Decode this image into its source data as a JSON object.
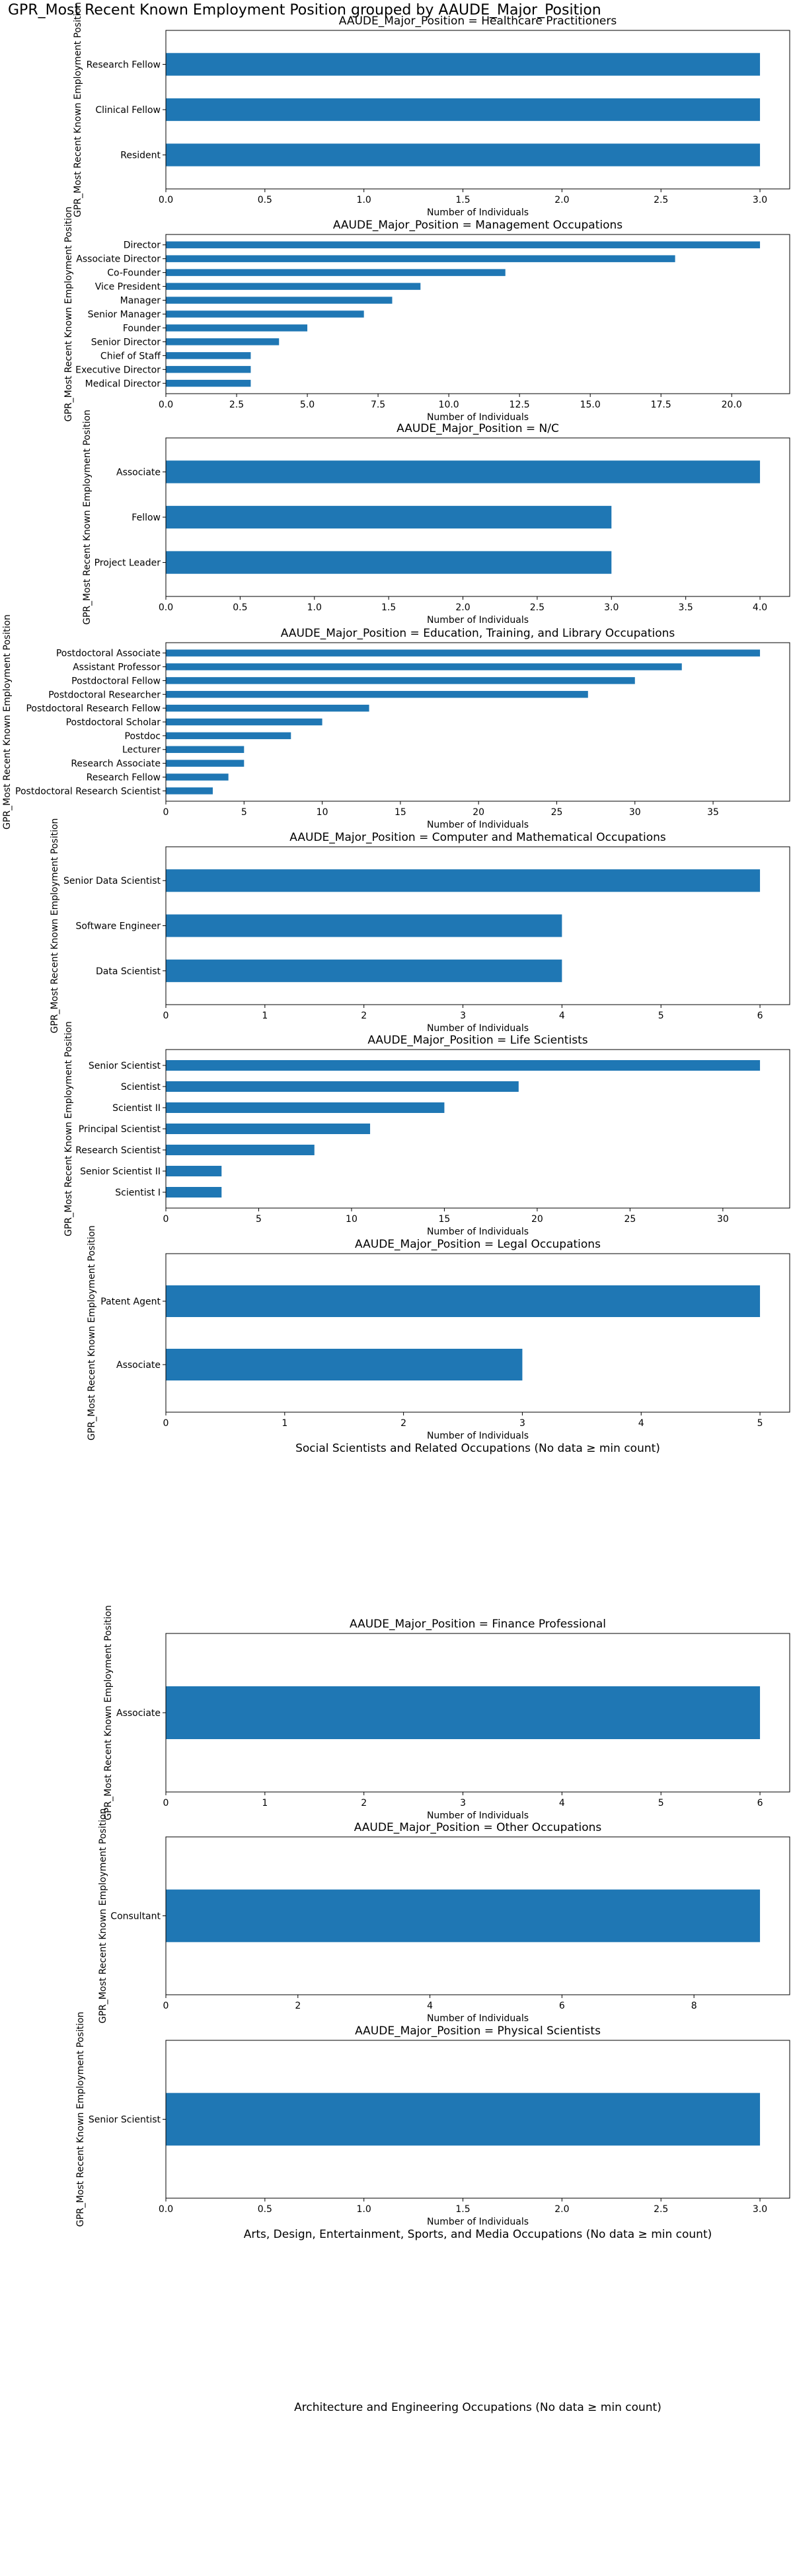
{
  "figure_title": "GPR_Most Recent Known Employment Position grouped by AAUDE_Major_Position",
  "colors": {
    "bar": "#1f77b4"
  },
  "chart_data": [
    {
      "type": "bar",
      "orientation": "horizontal",
      "title": "AAUDE_Major_Position = Healthcare Practitioners",
      "xlabel": "Number of Individuals",
      "ylabel": "GPR_Most Recent Known Employment Position",
      "categories": [
        "Research Fellow",
        "Clinical Fellow",
        "Resident"
      ],
      "values": [
        3,
        3,
        3
      ],
      "xlim": [
        0,
        3.15
      ],
      "xticks": [
        0,
        0.5,
        1,
        1.5,
        2,
        2.5,
        3
      ],
      "xtick_labels": [
        "0.0",
        "0.5",
        "1.0",
        "1.5",
        "2.0",
        "2.5",
        "3.0"
      ]
    },
    {
      "type": "bar",
      "orientation": "horizontal",
      "title": "AAUDE_Major_Position = Management Occupations",
      "xlabel": "Number of Individuals",
      "ylabel": "GPR_Most Recent Known Employment Position",
      "categories": [
        "Director",
        "Associate Director",
        "Co-Founder",
        "Vice President",
        "Manager",
        "Senior Manager",
        "Founder",
        "Senior Director",
        "Chief of Staff",
        "Executive Director",
        "Medical Director"
      ],
      "values": [
        21,
        18,
        12,
        9,
        8,
        7,
        5,
        4,
        3,
        3,
        3
      ],
      "xlim": [
        0,
        22.05
      ],
      "xticks": [
        0,
        2.5,
        5,
        7.5,
        10,
        12.5,
        15,
        17.5,
        20
      ],
      "xtick_labels": [
        "0.0",
        "2.5",
        "5.0",
        "7.5",
        "10.0",
        "12.5",
        "15.0",
        "17.5",
        "20.0"
      ]
    },
    {
      "type": "bar",
      "orientation": "horizontal",
      "title": "AAUDE_Major_Position = N/C",
      "xlabel": "Number of Individuals",
      "ylabel": "GPR_Most Recent Known Employment Position",
      "categories": [
        "Associate",
        "Fellow",
        "Project Leader"
      ],
      "values": [
        4,
        3,
        3
      ],
      "xlim": [
        0,
        4.2
      ],
      "xticks": [
        0,
        0.5,
        1,
        1.5,
        2,
        2.5,
        3,
        3.5,
        4
      ],
      "xtick_labels": [
        "0.0",
        "0.5",
        "1.0",
        "1.5",
        "2.0",
        "2.5",
        "3.0",
        "3.5",
        "4.0"
      ]
    },
    {
      "type": "bar",
      "orientation": "horizontal",
      "title": "AAUDE_Major_Position = Education, Training, and Library Occupations",
      "xlabel": "Number of Individuals",
      "ylabel": "GPR_Most Recent Known Employment Position",
      "categories": [
        "Postdoctoral Associate",
        "Assistant Professor",
        "Postdoctoral Fellow",
        "Postdoctoral Researcher",
        "Postdoctoral Research Fellow",
        "Postdoctoral Scholar",
        "Postdoc",
        "Lecturer",
        "Research Associate",
        "Research Fellow",
        "Postdoctoral Research Scientist"
      ],
      "values": [
        38,
        33,
        30,
        27,
        13,
        10,
        8,
        5,
        5,
        4,
        3
      ],
      "xlim": [
        0,
        39.9
      ],
      "xticks": [
        0,
        5,
        10,
        15,
        20,
        25,
        30,
        35
      ],
      "xtick_labels": [
        "0",
        "5",
        "10",
        "15",
        "20",
        "25",
        "30",
        "35"
      ]
    },
    {
      "type": "bar",
      "orientation": "horizontal",
      "title": "AAUDE_Major_Position = Computer and Mathematical Occupations",
      "xlabel": "Number of Individuals",
      "ylabel": "GPR_Most Recent Known Employment Position",
      "categories": [
        "Senior Data Scientist",
        "Software Engineer",
        "Data Scientist"
      ],
      "values": [
        6,
        4,
        4
      ],
      "xlim": [
        0,
        6.3
      ],
      "xticks": [
        0,
        1,
        2,
        3,
        4,
        5,
        6
      ],
      "xtick_labels": [
        "0",
        "1",
        "2",
        "3",
        "4",
        "5",
        "6"
      ]
    },
    {
      "type": "bar",
      "orientation": "horizontal",
      "title": "AAUDE_Major_Position = Life Scientists",
      "xlabel": "Number of Individuals",
      "ylabel": "GPR_Most Recent Known Employment Position",
      "categories": [
        "Senior Scientist",
        "Scientist",
        "Scientist II",
        "Principal Scientist",
        "Research Scientist",
        "Senior Scientist II",
        "Scientist I"
      ],
      "values": [
        32,
        19,
        15,
        11,
        8,
        3,
        3
      ],
      "xlim": [
        0,
        33.6
      ],
      "xticks": [
        0,
        5,
        10,
        15,
        20,
        25,
        30
      ],
      "xtick_labels": [
        "0",
        "5",
        "10",
        "15",
        "20",
        "25",
        "30"
      ]
    },
    {
      "type": "bar",
      "orientation": "horizontal",
      "title": "AAUDE_Major_Position = Legal Occupations",
      "xlabel": "Number of Individuals",
      "ylabel": "GPR_Most Recent Known Employment Position",
      "categories": [
        "Patent Agent",
        "Associate"
      ],
      "values": [
        5,
        3
      ],
      "xlim": [
        0,
        5.25
      ],
      "xticks": [
        0,
        1,
        2,
        3,
        4,
        5
      ],
      "xtick_labels": [
        "0",
        "1",
        "2",
        "3",
        "4",
        "5"
      ]
    },
    {
      "type": "empty",
      "title": "Social Scientists and Related Occupations (No data ≥ min count)"
    },
    {
      "type": "bar",
      "orientation": "horizontal",
      "title": "AAUDE_Major_Position = Finance Professional",
      "xlabel": "Number of Individuals",
      "ylabel": "GPR_Most Recent Known Employment Position",
      "categories": [
        "Associate"
      ],
      "values": [
        6
      ],
      "xlim": [
        0,
        6.3
      ],
      "xticks": [
        0,
        1,
        2,
        3,
        4,
        5,
        6
      ],
      "xtick_labels": [
        "0",
        "1",
        "2",
        "3",
        "4",
        "5",
        "6"
      ]
    },
    {
      "type": "bar",
      "orientation": "horizontal",
      "title": "AAUDE_Major_Position = Other Occupations",
      "xlabel": "Number of Individuals",
      "ylabel": "GPR_Most Recent Known Employment Position",
      "categories": [
        "Consultant"
      ],
      "values": [
        9
      ],
      "xlim": [
        0,
        9.45
      ],
      "xticks": [
        0,
        2,
        4,
        6,
        8
      ],
      "xtick_labels": [
        "0",
        "2",
        "4",
        "6",
        "8"
      ]
    },
    {
      "type": "bar",
      "orientation": "horizontal",
      "title": "AAUDE_Major_Position = Physical Scientists",
      "xlabel": "Number of Individuals",
      "ylabel": "GPR_Most Recent Known Employment Position",
      "categories": [
        "Senior Scientist"
      ],
      "values": [
        3
      ],
      "xlim": [
        0,
        3.15
      ],
      "xticks": [
        0,
        0.5,
        1,
        1.5,
        2,
        2.5,
        3
      ],
      "xtick_labels": [
        "0.0",
        "0.5",
        "1.0",
        "1.5",
        "2.0",
        "2.5",
        "3.0"
      ]
    },
    {
      "type": "empty",
      "title": "Arts, Design, Entertainment, Sports, and Media Occupations (No data ≥ min count)"
    },
    {
      "type": "empty",
      "title": "Architecture and Engineering Occupations (No data ≥ min count)"
    }
  ]
}
